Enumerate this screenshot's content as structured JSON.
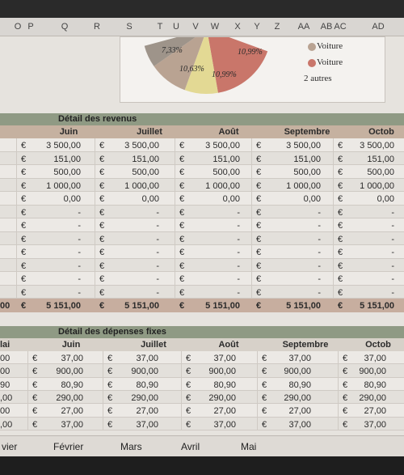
{
  "column_headers": [
    "O",
    "P",
    "Q",
    "R",
    "S",
    "T",
    "U",
    "V",
    "W",
    "X",
    "Y",
    "Z",
    "AA",
    "AB",
    "AC",
    "AD"
  ],
  "pie": {
    "labels": [
      "7,33%",
      "10,63%",
      "10,99%",
      "10,99%"
    ],
    "legend": [
      "Voiture",
      "Voiture",
      "2 autres"
    ]
  },
  "revenues": {
    "title": "Détail des revenus",
    "months": [
      "Juin",
      "Juillet",
      "Août",
      "Septembre",
      "Octob"
    ],
    "currency": "€",
    "rows": [
      [
        "3 500,00",
        "3 500,00",
        "3 500,00",
        "3 500,00",
        "3 500,00"
      ],
      [
        "151,00",
        "151,00",
        "151,00",
        "151,00",
        "151,00"
      ],
      [
        "500,00",
        "500,00",
        "500,00",
        "500,00",
        "500,00"
      ],
      [
        "1 000,00",
        "1 000,00",
        "1 000,00",
        "1 000,00",
        "1 000,00"
      ],
      [
        "0,00",
        "0,00",
        "0,00",
        "0,00",
        "0,00"
      ],
      [
        "-",
        "-",
        "-",
        "-",
        "-"
      ],
      [
        "-",
        "-",
        "-",
        "-",
        "-"
      ],
      [
        "-",
        "-",
        "-",
        "-",
        "-"
      ],
      [
        "-",
        "-",
        "-",
        "-",
        "-"
      ],
      [
        "-",
        "-",
        "-",
        "-",
        "-"
      ],
      [
        "-",
        "-",
        "-",
        "-",
        "-"
      ],
      [
        "-",
        "-",
        "-",
        "-",
        "-"
      ]
    ],
    "total_left": "00",
    "totals": [
      "5 151,00",
      "5 151,00",
      "5 151,00",
      "5 151,00",
      "5 151,00"
    ]
  },
  "expenses": {
    "title": "Détail des dépenses fixes",
    "left_header": "lai",
    "months": [
      "Juin",
      "Juillet",
      "Août",
      "Septembre",
      "Octob"
    ],
    "currency": "€",
    "left": [
      "00",
      "00",
      "90",
      ",00",
      "00",
      ",00"
    ],
    "rows": [
      [
        "37,00",
        "37,00",
        "37,00",
        "37,00",
        "37,00"
      ],
      [
        "900,00",
        "900,00",
        "900,00",
        "900,00",
        "900,00"
      ],
      [
        "80,90",
        "80,90",
        "80,90",
        "80,90",
        "80,90"
      ],
      [
        "290,00",
        "290,00",
        "290,00",
        "290,00",
        "290,00"
      ],
      [
        "27,00",
        "27,00",
        "27,00",
        "27,00",
        "27,00"
      ],
      [
        "37,00",
        "37,00",
        "37,00",
        "37,00",
        "37,00"
      ]
    ]
  },
  "tabs": [
    "vier",
    "Février",
    "Mars",
    "Avril",
    "Mai"
  ]
}
